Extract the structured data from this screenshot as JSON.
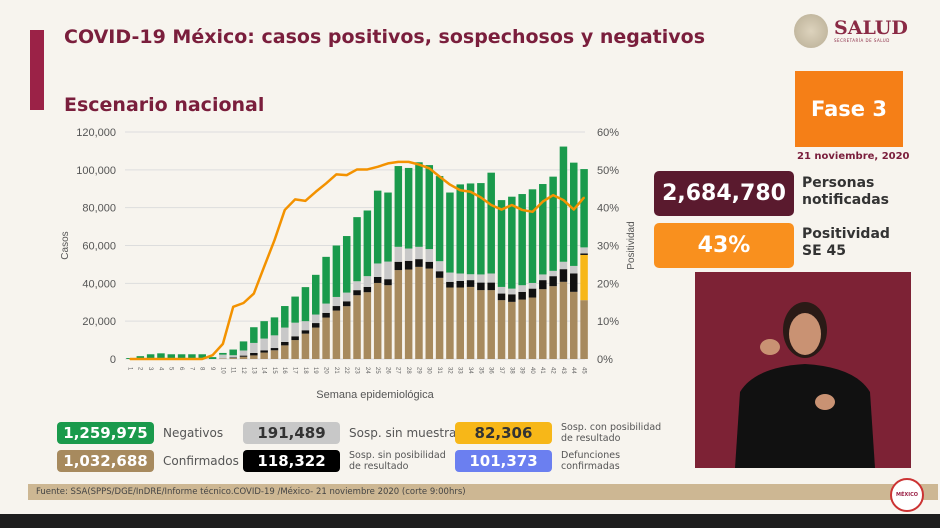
{
  "header": {
    "title": "COVID-19 México: casos positivos, sospechosos y negativos",
    "subtitle": "Escenario nacional",
    "logo_text": "SALUD",
    "logo_sub": "SECRETARÍA DE SALUD"
  },
  "side": {
    "phase": "Fase 3",
    "date": "21 noviembre, 2020",
    "notified_value": "2,684,780",
    "notified_label_1": "Personas",
    "notified_label_2": "notificadas",
    "positivity_value": "43%",
    "positivity_label_1": "Positividad",
    "positivity_label_2": "SE 45"
  },
  "legend": [
    {
      "value": "1,259,975",
      "label": "Negativos",
      "color": "#1a9a4c"
    },
    {
      "value": "1,032,688",
      "label": "Confirmados",
      "color": "#a78a5e"
    },
    {
      "value": "191,489",
      "label": "Sosp. sin muestra",
      "color": "#c8c8c8"
    },
    {
      "value": "118,322",
      "label_1": "Sosp. sin posibilidad",
      "label_2": "de resultado",
      "color": "#000000"
    },
    {
      "value": "82,306",
      "label_1": "Sosp. con posibilidad",
      "label_2": "de resultado",
      "color": "#f7b718"
    },
    {
      "value": "101,373",
      "label_1": "Defunciones",
      "label_2": "confirmadas",
      "color": "#6b7ff0"
    }
  ],
  "footer": "Fuente: SSA(SPPS/DGE/InDRE/Informe técnico.COVID-19 /México- 21 noviembre 2020 (corte 9:00hrs)",
  "badge": "MÉXICO",
  "chart_data": {
    "type": "bar",
    "subtype": "stacked bar + line (secondary axis)",
    "xlabel": "Semana epidemiológica",
    "ylabel": "Casos",
    "y2label": "Positividad",
    "ylim": [
      0,
      120000
    ],
    "y2lim": [
      0,
      60
    ],
    "yticks": [
      "0",
      "20,000",
      "40,000",
      "60,000",
      "80,000",
      "100,000",
      "120,000"
    ],
    "y2ticks": [
      "0%",
      "10%",
      "20%",
      "30%",
      "40%",
      "50%",
      "60%"
    ],
    "grid": true,
    "categories": [
      "1",
      "2",
      "3",
      "4",
      "5",
      "6",
      "7",
      "8",
      "9",
      "10",
      "11",
      "12",
      "13",
      "14",
      "15",
      "16",
      "17",
      "18",
      "19",
      "20",
      "21",
      "22",
      "23",
      "24",
      "25",
      "26",
      "27",
      "28",
      "29",
      "30",
      "31",
      "32",
      "33",
      "34",
      "35",
      "36",
      "37",
      "38",
      "39",
      "40",
      "41",
      "42",
      "43",
      "44",
      "45"
    ],
    "series": [
      {
        "key": "confirmados",
        "color": "#a78a5e",
        "values": [
          0,
          0,
          0,
          0,
          0,
          0,
          0,
          0,
          0,
          300,
          600,
          1200,
          1900,
          3400,
          4600,
          7200,
          10000,
          13400,
          16600,
          21900,
          25600,
          27900,
          33700,
          35300,
          40200,
          39000,
          47000,
          47300,
          48700,
          47800,
          42900,
          37800,
          37800,
          38100,
          36400,
          36400,
          31100,
          30200,
          31400,
          32500,
          36900,
          38500,
          40800,
          35500,
          31100
        ]
      },
      {
        "key": "con_posibilidad",
        "color": "#f7b718",
        "values": [
          0,
          0,
          0,
          0,
          0,
          0,
          0,
          0,
          0,
          0,
          0,
          0,
          0,
          0,
          0,
          0,
          0,
          0,
          0,
          0,
          0,
          0,
          0,
          0,
          0,
          0,
          0,
          0,
          0,
          0,
          0,
          0,
          0,
          0,
          0,
          0,
          0,
          0,
          0,
          0,
          0,
          0,
          0,
          0,
          23900
        ]
      },
      {
        "key": "sin_posibilidad",
        "color": "#111111",
        "values": [
          0,
          0,
          0,
          0,
          0,
          0,
          0,
          0,
          0,
          0,
          300,
          600,
          1300,
          1200,
          1200,
          1800,
          2000,
          1800,
          2400,
          2500,
          2400,
          2600,
          2700,
          2800,
          3200,
          3200,
          4400,
          4600,
          4100,
          3600,
          3500,
          3000,
          3500,
          3600,
          4000,
          4000,
          3500,
          4000,
          4100,
          4700,
          4800,
          5300,
          6700,
          9700,
          800
        ]
      },
      {
        "key": "sin_muestra",
        "color": "#c8c8c8",
        "values": [
          0,
          0,
          0,
          0,
          0,
          0,
          0,
          0,
          0,
          2000,
          1100,
          2700,
          5300,
          6200,
          6700,
          7600,
          7200,
          4800,
          4500,
          4900,
          4800,
          4600,
          4700,
          5700,
          7100,
          9300,
          7900,
          6500,
          6500,
          6700,
          5300,
          4900,
          3900,
          3100,
          4300,
          4800,
          3500,
          3000,
          3500,
          3000,
          3000,
          2800,
          3900,
          4000,
          3200
        ]
      },
      {
        "key": "negativos",
        "color": "#1a9a4c",
        "values": [
          500,
          1500,
          2500,
          3000,
          2500,
          2500,
          2500,
          2500,
          1000,
          900,
          3000,
          4800,
          8300,
          9200,
          9500,
          11400,
          13800,
          18000,
          21000,
          24700,
          27200,
          29900,
          33900,
          34700,
          38500,
          36500,
          42700,
          42600,
          44700,
          44400,
          45000,
          42300,
          47100,
          48000,
          48300,
          53300,
          45900,
          48600,
          48200,
          49500,
          47800,
          49800,
          60900,
          54600,
          41400
        ]
      }
    ],
    "line": {
      "name": "Positividad",
      "color": "#f39200",
      "axis": "right",
      "values": [
        0,
        0,
        0,
        0,
        0,
        0,
        0,
        0,
        1,
        4,
        13.8,
        14.8,
        17.3,
        24.4,
        31.4,
        39.4,
        42.2,
        41.8,
        44.2,
        46.4,
        48.8,
        48.6,
        50.1,
        50.1,
        50.8,
        51.7,
        52.1,
        52.1,
        51.4,
        50.4,
        48.2,
        46.1,
        44.6,
        44.2,
        42.7,
        40.7,
        39.5,
        40.7,
        39.4,
        38.9,
        41.6,
        43.3,
        42,
        39.5,
        42.7
      ]
    }
  }
}
